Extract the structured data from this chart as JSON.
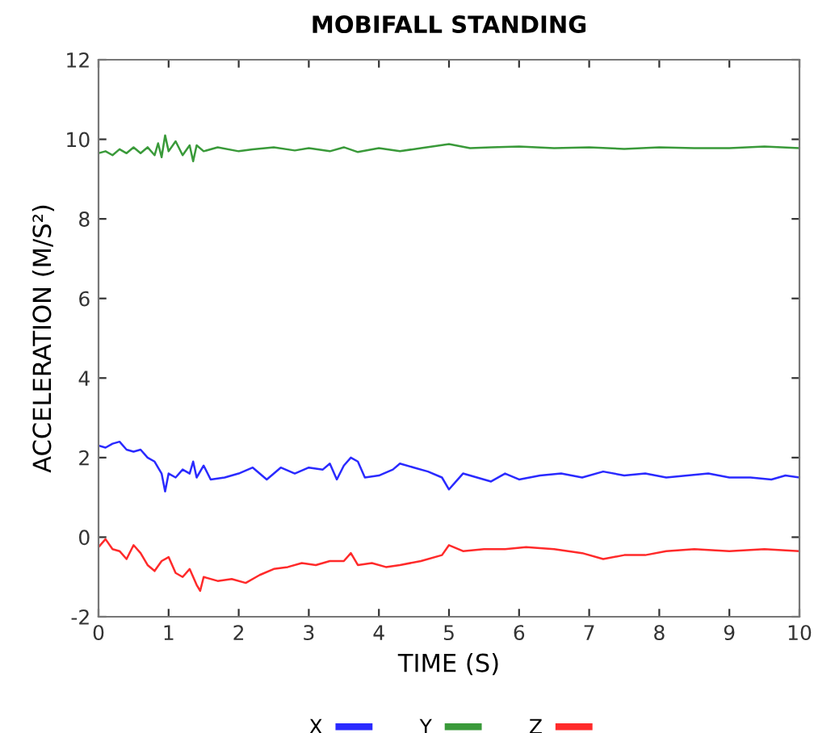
{
  "chart_data": {
    "type": "line",
    "title": "MOBIFALL STANDING",
    "xlabel": "TIME (S)",
    "ylabel": "ACCELERATION (M/S²)",
    "xlim": [
      0,
      10
    ],
    "xticks": [
      0,
      1,
      2,
      3,
      4,
      5,
      6,
      7,
      8,
      9,
      10
    ],
    "ylim": [
      -2,
      12
    ],
    "yticks": [
      -2,
      0,
      2,
      4,
      6,
      8,
      10,
      12
    ],
    "grid": false,
    "legend": "bottom",
    "marker": "none",
    "line_style": "solid",
    "series": [
      {
        "name": "X",
        "color": "#2a2aff",
        "x": [
          0,
          0.1,
          0.2,
          0.3,
          0.4,
          0.5,
          0.6,
          0.7,
          0.8,
          0.9,
          0.95,
          1.0,
          1.1,
          1.2,
          1.3,
          1.35,
          1.4,
          1.5,
          1.6,
          1.8,
          2.0,
          2.2,
          2.4,
          2.6,
          2.8,
          3.0,
          3.2,
          3.3,
          3.4,
          3.5,
          3.6,
          3.7,
          3.8,
          4.0,
          4.2,
          4.3,
          4.5,
          4.7,
          4.9,
          5.0,
          5.1,
          5.2,
          5.4,
          5.6,
          5.8,
          6.0,
          6.3,
          6.6,
          6.9,
          7.2,
          7.5,
          7.8,
          8.1,
          8.4,
          8.7,
          9.0,
          9.3,
          9.6,
          9.8,
          10
        ],
        "values": [
          2.3,
          2.25,
          2.35,
          2.4,
          2.2,
          2.15,
          2.2,
          2.0,
          1.9,
          1.6,
          1.15,
          1.6,
          1.5,
          1.7,
          1.6,
          1.9,
          1.5,
          1.8,
          1.45,
          1.5,
          1.6,
          1.75,
          1.45,
          1.75,
          1.6,
          1.75,
          1.7,
          1.85,
          1.45,
          1.8,
          2.0,
          1.9,
          1.5,
          1.55,
          1.7,
          1.85,
          1.75,
          1.65,
          1.5,
          1.2,
          1.4,
          1.6,
          1.5,
          1.4,
          1.6,
          1.45,
          1.55,
          1.6,
          1.5,
          1.65,
          1.55,
          1.6,
          1.5,
          1.55,
          1.6,
          1.5,
          1.5,
          1.45,
          1.55,
          1.5
        ]
      },
      {
        "name": "Y",
        "color": "#3a9a3a",
        "x": [
          0,
          0.1,
          0.2,
          0.3,
          0.4,
          0.5,
          0.6,
          0.7,
          0.8,
          0.85,
          0.9,
          0.95,
          1.0,
          1.1,
          1.2,
          1.3,
          1.35,
          1.4,
          1.5,
          1.7,
          2.0,
          2.2,
          2.5,
          2.8,
          3.0,
          3.3,
          3.5,
          3.7,
          4.0,
          4.3,
          4.6,
          5.0,
          5.3,
          5.6,
          6.0,
          6.5,
          7.0,
          7.5,
          8.0,
          8.5,
          9.0,
          9.5,
          10
        ],
        "values": [
          9.65,
          9.7,
          9.6,
          9.75,
          9.65,
          9.8,
          9.65,
          9.8,
          9.6,
          9.9,
          9.55,
          10.1,
          9.7,
          9.95,
          9.6,
          9.85,
          9.45,
          9.85,
          9.7,
          9.8,
          9.7,
          9.75,
          9.8,
          9.72,
          9.78,
          9.7,
          9.8,
          9.68,
          9.78,
          9.7,
          9.78,
          9.88,
          9.78,
          9.8,
          9.82,
          9.78,
          9.8,
          9.76,
          9.8,
          9.78,
          9.78,
          9.82,
          9.78
        ]
      },
      {
        "name": "Z",
        "color": "#ff2a2a",
        "x": [
          0,
          0.1,
          0.2,
          0.3,
          0.4,
          0.5,
          0.6,
          0.7,
          0.8,
          0.9,
          1.0,
          1.1,
          1.2,
          1.3,
          1.4,
          1.45,
          1.5,
          1.7,
          1.9,
          2.1,
          2.3,
          2.5,
          2.7,
          2.9,
          3.1,
          3.3,
          3.5,
          3.6,
          3.7,
          3.9,
          4.1,
          4.3,
          4.6,
          4.9,
          5.0,
          5.2,
          5.5,
          5.8,
          6.1,
          6.5,
          6.9,
          7.2,
          7.5,
          7.8,
          8.1,
          8.5,
          9.0,
          9.5,
          10
        ],
        "values": [
          -0.25,
          -0.05,
          -0.3,
          -0.35,
          -0.55,
          -0.2,
          -0.4,
          -0.7,
          -0.85,
          -0.6,
          -0.5,
          -0.9,
          -1.0,
          -0.8,
          -1.2,
          -1.35,
          -1.0,
          -1.1,
          -1.05,
          -1.15,
          -0.95,
          -0.8,
          -0.75,
          -0.65,
          -0.7,
          -0.6,
          -0.6,
          -0.4,
          -0.7,
          -0.65,
          -0.75,
          -0.7,
          -0.6,
          -0.45,
          -0.2,
          -0.35,
          -0.3,
          -0.3,
          -0.25,
          -0.3,
          -0.4,
          -0.55,
          -0.45,
          -0.45,
          -0.35,
          -0.3,
          -0.35,
          -0.3,
          -0.35
        ]
      }
    ]
  }
}
